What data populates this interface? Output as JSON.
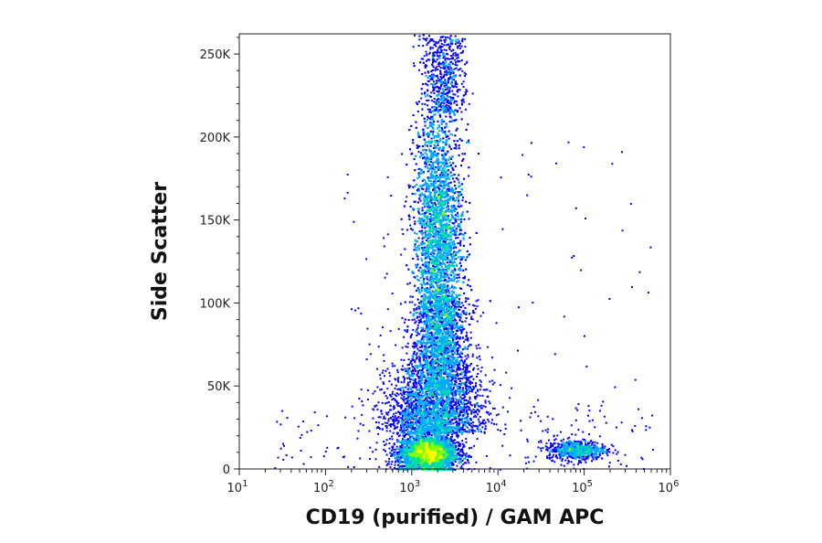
{
  "chart_data": {
    "type": "scatter",
    "subtype": "flow-cytometry density dot plot",
    "title": "",
    "xlabel": "CD19 (purified) / GAM APC",
    "ylabel": "Side Scatter",
    "x_scale": "log",
    "xlim": [
      10,
      1000000
    ],
    "ylim": [
      0,
      262144
    ],
    "x_ticks": [
      {
        "value": 10,
        "base": "10",
        "exp": "1"
      },
      {
        "value": 100,
        "base": "10",
        "exp": "2"
      },
      {
        "value": 1000,
        "base": "10",
        "exp": "3"
      },
      {
        "value": 10000,
        "base": "10",
        "exp": "4"
      },
      {
        "value": 100000,
        "base": "10",
        "exp": "5"
      },
      {
        "value": 1000000,
        "base": "10",
        "exp": "6"
      }
    ],
    "y_ticks": [
      {
        "value": 0,
        "label": "0"
      },
      {
        "value": 50000,
        "label": "50K"
      },
      {
        "value": 100000,
        "label": "100K"
      },
      {
        "value": 150000,
        "label": "150K"
      },
      {
        "value": 200000,
        "label": "200K"
      },
      {
        "value": 250000,
        "label": "250K"
      }
    ],
    "grid": false,
    "legend": "none",
    "color_scale": [
      "#0000ff",
      "#00a8ff",
      "#00e0a0",
      "#7fff00",
      "#ffff00",
      "#ff8000",
      "#ff0000"
    ],
    "populations": [
      {
        "x_center": 1500,
        "y_center": 10000,
        "density": "highest"
      },
      {
        "x_center": 2000,
        "y_center": 140000,
        "density": "medium"
      },
      {
        "x_center": 80000,
        "y_center": 12000,
        "density": "low"
      }
    ]
  }
}
